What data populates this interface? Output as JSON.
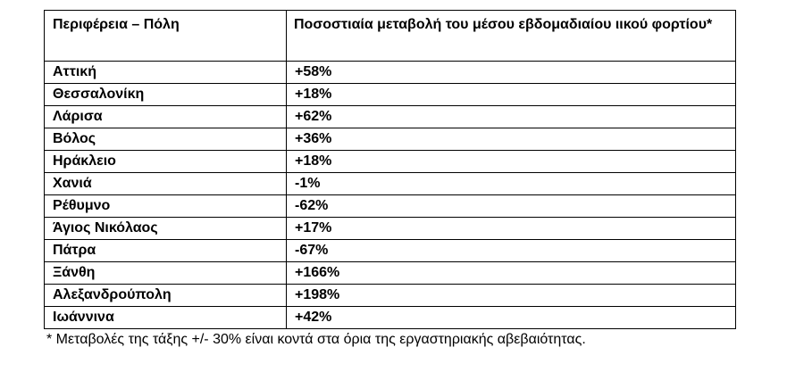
{
  "table": {
    "header": {
      "region": "Περιφέρεια – Πόλη",
      "change": "Ποσοστιαία μεταβολή του μέσου εβδομαδιαίου ιικού φορτίου*"
    },
    "rows": [
      {
        "region": "Αττική",
        "change": "+58%"
      },
      {
        "region": "Θεσσαλονίκη",
        "change": "+18%"
      },
      {
        "region": "Λάρισα",
        "change": "+62%"
      },
      {
        "region": "Βόλος",
        "change": "+36%"
      },
      {
        "region": "Ηράκλειο",
        "change": "+18%"
      },
      {
        "region": "Χανιά",
        "change": "-1%"
      },
      {
        "region": "Ρέθυμνο",
        "change": "-62%"
      },
      {
        "region": "Άγιος Νικόλαος",
        "change": "+17%"
      },
      {
        "region": "Πάτρα",
        "change": "-67%"
      },
      {
        "region": "Ξάνθη",
        "change": "+166%"
      },
      {
        "region": "Αλεξανδρούπολη",
        "change": "+198%"
      },
      {
        "region": "Ιωάννινα",
        "change": "+42%"
      }
    ]
  },
  "footnote": "* Μεταβολές της τάξης +/- 30% είναι κοντά στα όρια της εργαστηριακής αβεβαιότητας."
}
